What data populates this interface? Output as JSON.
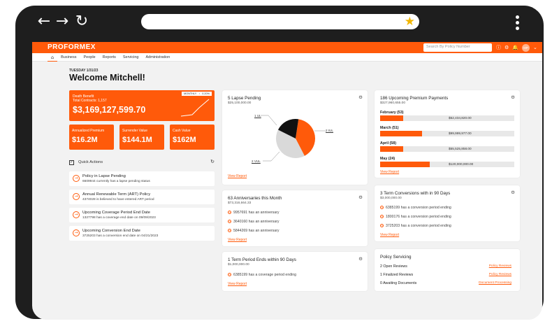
{
  "browser": {
    "back_icon": "arrow-left-icon",
    "forward_icon": "arrow-right-icon",
    "reload_icon": "reload-icon",
    "bookmark_icon": "star-icon",
    "url": ""
  },
  "app": {
    "logo": "PROFORMEX",
    "search_placeholder": "Search By Policy Number",
    "avatar_initials": "MP",
    "accent_color": "#ff5a0a"
  },
  "nav": {
    "home_icon": "home-icon",
    "items": [
      "Business",
      "People",
      "Reports",
      "Servicing",
      "Administration"
    ]
  },
  "header": {
    "date": "TUESDAY 1/31/23",
    "welcome": "Welcome Mitchell!"
  },
  "death_benefit": {
    "label": "Death Benefit",
    "contracts": "Total Contracts: 1,157",
    "amount": "$3,169,127,599.70",
    "period": "MONTHLY",
    "change": "0.20%"
  },
  "stats": [
    {
      "label": "Annualized Premium",
      "value": "$16.2M"
    },
    {
      "label": "Surrender Value",
      "value": "$144.1M"
    },
    {
      "label": "Cash Value",
      "value": "$162M"
    }
  ],
  "quick_actions": {
    "title": "Quick Actions",
    "items": [
      {
        "title": "Policy in Lapse Pending",
        "desc": "6609944 currently has a lapse pending status"
      },
      {
        "title": "Annual Renewable Term (ART) Policy",
        "desc": "4374028 is believed to have entered ART period"
      },
      {
        "title": "Upcoming Coverage Period End Date",
        "desc": "1327798 has a coverage end date on 09/09/2023"
      },
      {
        "title": "Upcoming Conversion End Date",
        "desc": "3725203 has a conversion end date on 04/21/2023"
      }
    ]
  },
  "lapse_pending": {
    "title": "5 Lapse Pending",
    "subtitle": "$25,100,000.00",
    "link": "View Report",
    "labels": {
      "ul1": "1 UL",
      "iul2": "2 IUL",
      "vul2": "2 VUL"
    }
  },
  "chart_data": {
    "type": "pie",
    "title": "5 Lapse Pending",
    "slices": [
      {
        "label": "2 IUL",
        "value": 2,
        "color": "#ff5a0a"
      },
      {
        "label": "2 VUL",
        "value": 2,
        "color": "#d9d9d9"
      },
      {
        "label": "1 UL",
        "value": 1,
        "color": "#111111"
      }
    ]
  },
  "anniversaries": {
    "title": "63 Anniversaries this Month",
    "subtitle": "$73,316,664.33",
    "items": [
      {
        "id": "9957691",
        "text": "has an anniversary"
      },
      {
        "id": "3640160",
        "text": "has an anniversary"
      },
      {
        "id": "5844269",
        "text": "has an anniversary"
      }
    ],
    "link": "View Report"
  },
  "term_period": {
    "title": "1 Term Period Ends within 90 Days",
    "subtitle": "$1,000,000.00",
    "items": [
      {
        "id": "6385199",
        "text": "has a coverage period ending"
      }
    ],
    "link": "View Report"
  },
  "premium_payments": {
    "title": "186 Upcoming Premium Payments",
    "subtitle": "$327,960,655.00",
    "months": [
      {
        "label": "February (53)",
        "amount": "$52,434,820.00",
        "fraction": 0.17
      },
      {
        "label": "March (51)",
        "amount": "$99,999,977.00",
        "fraction": 0.31
      },
      {
        "label": "April (58)",
        "amount": "$55,525,858.00",
        "fraction": 0.17
      },
      {
        "label": "May (24)",
        "amount": "$120,000,000.00",
        "fraction": 0.37
      }
    ],
    "link": "View Report"
  },
  "term_conversions": {
    "title": "3 Term Conversions with in 90 Days",
    "subtitle": "$3,000,000.00",
    "items": [
      {
        "id": "6385199",
        "text": "has a conversion period ending"
      },
      {
        "id": "1800176",
        "text": "has a conversion period ending"
      },
      {
        "id": "3725203",
        "text": "has a conversion period ending"
      }
    ],
    "link": "View Report"
  },
  "policy_servicing": {
    "title": "Policy Servicing",
    "rows": [
      {
        "label": "2 Open Reviews",
        "link": "Policy Reviews"
      },
      {
        "label": "1 Finalized Reviews",
        "link": "Policy Reviews"
      },
      {
        "label": "0 Awaiting Documents",
        "link": "Document Processing"
      }
    ]
  }
}
